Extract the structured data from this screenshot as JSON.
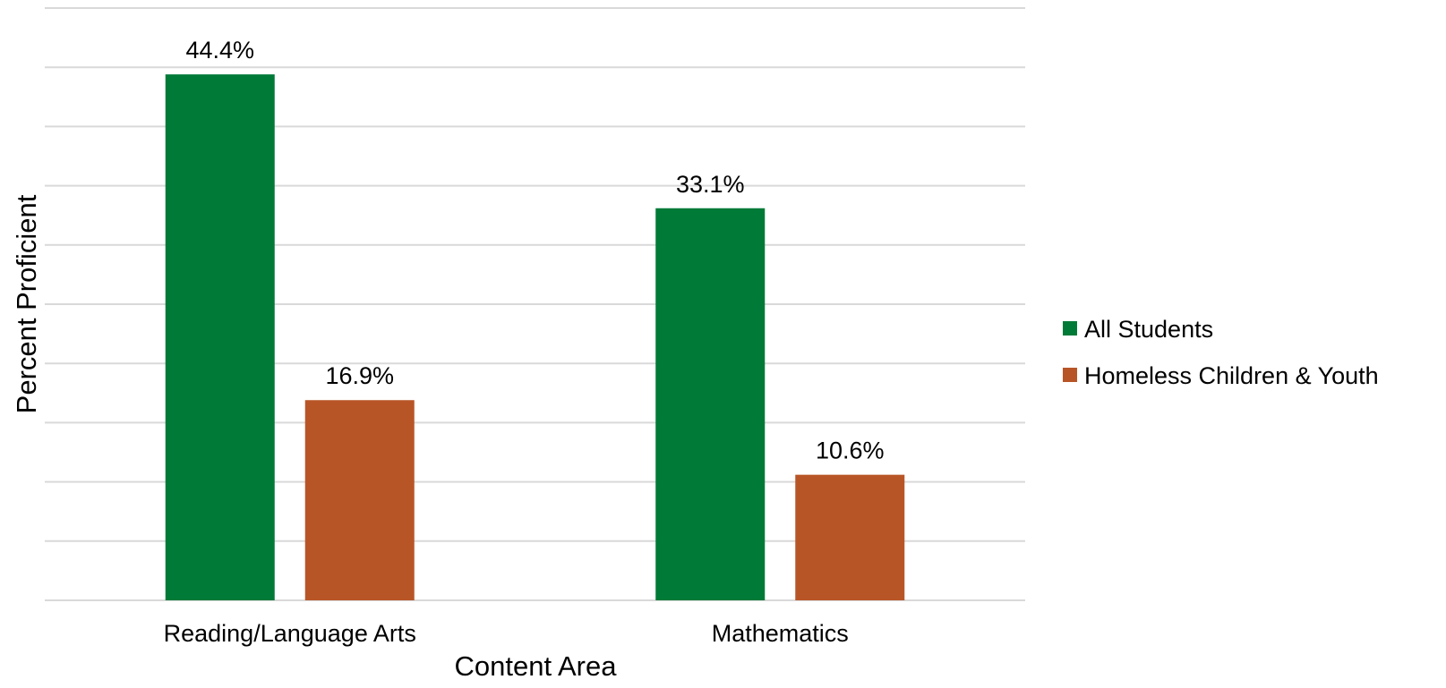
{
  "chart_data": {
    "type": "bar",
    "categories": [
      "Reading/Language Arts",
      "Mathematics"
    ],
    "series": [
      {
        "name": "All Students",
        "values": [
          44.4,
          33.1
        ],
        "color": "#007a37"
      },
      {
        "name": "Homeless Children & Youth",
        "values": [
          16.9,
          10.6
        ],
        "color": "#b85526"
      }
    ],
    "data_labels": [
      [
        "44.4%",
        "33.1%"
      ],
      [
        "16.9%",
        "10.6%"
      ]
    ],
    "xlabel": "Content Area",
    "ylabel": "Percent Proficient",
    "ylim": [
      0,
      50
    ],
    "grid": true,
    "legend_position": "right"
  }
}
